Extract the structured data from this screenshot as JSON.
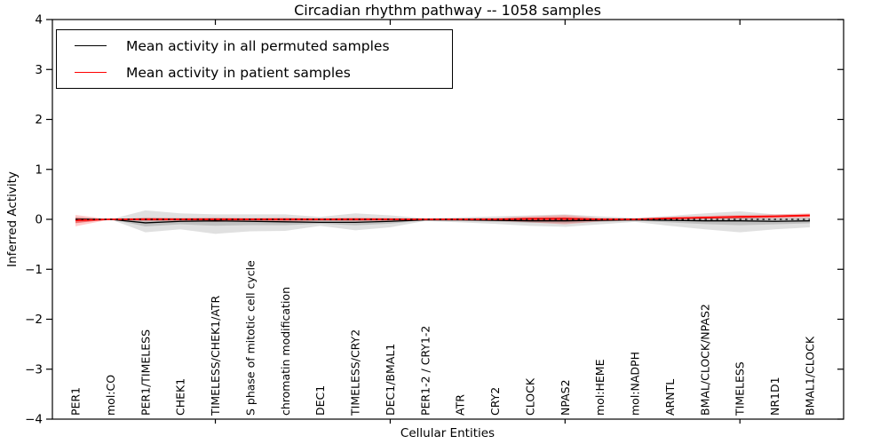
{
  "chart_data": {
    "type": "line",
    "title": "Circadian rhythm pathway -- 1058 samples",
    "xlabel": "Cellular Entities",
    "ylabel": "Inferred Activity",
    "ylim": [
      -4,
      4
    ],
    "yticks": [
      4,
      3,
      2,
      1,
      0,
      -1,
      -2,
      -3,
      -4
    ],
    "xtick_category_indices": [
      4,
      9,
      14,
      19
    ],
    "grid": false,
    "legend_position": "upper left",
    "categories": [
      "PER1",
      "mol:CO",
      "PER1/TIMELESS",
      "CHEK1",
      "TIMELESS/CHEK1/ATR",
      "S phase of mitotic cell cycle",
      "chromatin modification",
      "DEC1",
      "TIMELESS/CRY2",
      "DEC1/BMAL1",
      "PER1-2 / CRY1-2",
      "ATR",
      "CRY2",
      "CLOCK",
      "NPAS2",
      "mol:HEME",
      "mol:NADPH",
      "ARNTL",
      "BMAL/CLOCK/NPAS2",
      "TIMELESS",
      "NR1D1",
      "BMAL1/CLOCK"
    ],
    "series": [
      {
        "name": "Mean activity in all permuted samples",
        "color": "#000000",
        "band_color": "#000000",
        "values": [
          0.0,
          0.0,
          -0.07,
          -0.04,
          -0.03,
          -0.04,
          -0.05,
          -0.06,
          -0.06,
          -0.04,
          -0.01,
          -0.01,
          -0.02,
          -0.03,
          -0.03,
          -0.02,
          -0.01,
          -0.02,
          -0.03,
          -0.03,
          -0.04,
          -0.03
        ],
        "band_upper": [
          0.05,
          0.0,
          0.18,
          0.12,
          0.1,
          0.1,
          0.1,
          0.05,
          0.12,
          0.08,
          0.02,
          0.04,
          0.06,
          0.08,
          0.1,
          0.06,
          0.03,
          0.07,
          0.12,
          0.16,
          0.1,
          0.1
        ],
        "band_lower": [
          -0.08,
          0.0,
          -0.26,
          -0.2,
          -0.29,
          -0.24,
          -0.23,
          -0.13,
          -0.22,
          -0.16,
          -0.03,
          -0.06,
          -0.09,
          -0.13,
          -0.15,
          -0.1,
          -0.05,
          -0.13,
          -0.2,
          -0.26,
          -0.2,
          -0.16
        ]
      },
      {
        "name": "Mean activity in patient samples",
        "color": "#ff0000",
        "band_color": "#ff0000",
        "values": [
          -0.02,
          0.0,
          0.0,
          0.0,
          0.0,
          0.0,
          0.0,
          0.0,
          0.0,
          0.0,
          0.0,
          0.0,
          0.0,
          0.01,
          0.01,
          0.0,
          0.0,
          0.02,
          0.035,
          0.05,
          0.06,
          0.08
        ],
        "band_upper": [
          0.09,
          0.0,
          0.04,
          0.03,
          0.04,
          0.03,
          0.04,
          0.02,
          0.04,
          0.03,
          0.01,
          0.02,
          0.03,
          0.06,
          0.09,
          0.03,
          0.015,
          0.05,
          0.07,
          0.09,
          0.1,
          0.12
        ],
        "band_lower": [
          -0.14,
          0.0,
          -0.04,
          -0.03,
          -0.05,
          -0.04,
          -0.05,
          -0.03,
          -0.04,
          -0.03,
          -0.01,
          -0.02,
          -0.03,
          -0.06,
          -0.1,
          -0.04,
          -0.02,
          -0.01,
          0.0,
          0.01,
          0.02,
          0.03
        ]
      }
    ],
    "zero_line": {
      "y": 0,
      "style": "dashed",
      "color": "#000000"
    }
  }
}
